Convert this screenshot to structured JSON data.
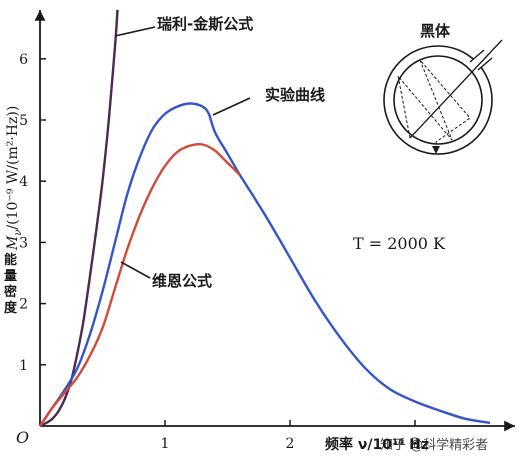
{
  "chart_data": {
    "type": "line",
    "xlabel": "频率  ν/10¹⁴ Hz",
    "ylabel_quantity": "M",
    "ylabel_subscript": "ν",
    "ylabel_unit": "/(10⁻⁹ W/(m²·Hz))",
    "ylabel_cn": "能量密度",
    "origin_label": "O",
    "xlim": [
      0,
      3.7
    ],
    "ylim": [
      0,
      6.8
    ],
    "x_ticks": [
      1,
      2,
      3
    ],
    "y_ticks": [
      1,
      2,
      3,
      4,
      5,
      6
    ],
    "grid": false,
    "annotation_temperature": "T = 2000 K",
    "inset_label": "黑体",
    "series": [
      {
        "name": "瑞利-金斯公式",
        "color": "#4a2a52",
        "x": [
          0,
          0.05,
          0.1,
          0.15,
          0.2,
          0.25,
          0.3,
          0.35,
          0.4,
          0.45,
          0.5,
          0.55,
          0.6,
          0.62
        ],
        "y": [
          0,
          0.05,
          0.12,
          0.25,
          0.45,
          0.75,
          1.2,
          1.75,
          2.45,
          3.2,
          4.0,
          5.0,
          6.2,
          6.8
        ]
      },
      {
        "name": "实验曲线",
        "color": "#3355cc",
        "x": [
          0,
          0.1,
          0.2,
          0.3,
          0.4,
          0.5,
          0.6,
          0.7,
          0.8,
          0.9,
          1.0,
          1.1,
          1.2,
          1.3,
          1.35,
          1.4,
          1.5,
          1.6,
          1.8,
          2.0,
          2.2,
          2.4,
          2.6,
          2.8,
          3.0,
          3.2,
          3.4,
          3.6
        ],
        "y": [
          0,
          0.3,
          0.6,
          0.95,
          1.5,
          2.2,
          3.0,
          3.8,
          4.4,
          4.85,
          5.1,
          5.22,
          5.27,
          5.22,
          5.1,
          4.8,
          4.45,
          4.1,
          3.45,
          2.75,
          2.05,
          1.45,
          0.95,
          0.6,
          0.4,
          0.25,
          0.12,
          0.05
        ]
      },
      {
        "name": "维恩公式",
        "color": "#d14a3a",
        "x": [
          0,
          0.1,
          0.2,
          0.3,
          0.4,
          0.5,
          0.6,
          0.7,
          0.8,
          0.9,
          1.0,
          1.1,
          1.2,
          1.3,
          1.4,
          1.5,
          1.6
        ],
        "y": [
          0,
          0.3,
          0.55,
          0.8,
          1.15,
          1.6,
          2.25,
          2.9,
          3.45,
          3.9,
          4.25,
          4.48,
          4.58,
          4.6,
          4.5,
          4.3,
          4.1
        ]
      }
    ]
  },
  "watermark": "知乎 @科学精彩者"
}
